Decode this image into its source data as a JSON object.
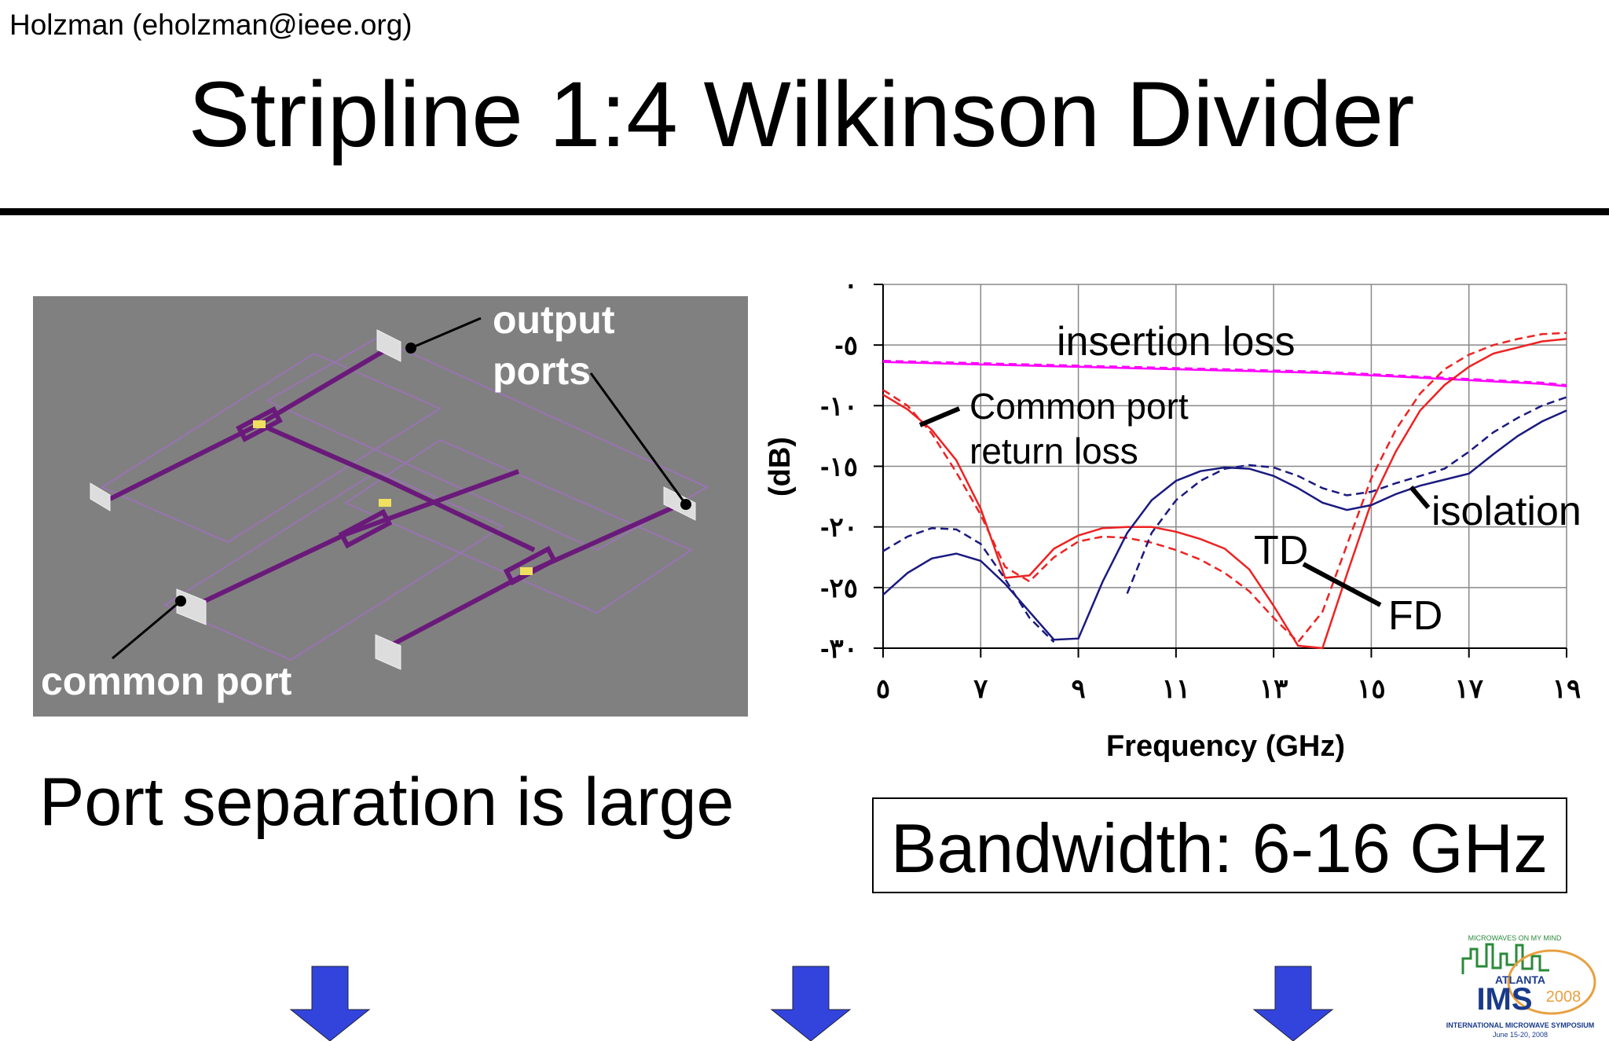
{
  "header": {
    "author": "Holzman  (eholzman@ieee.org)",
    "title": "Stripline 1:4 Wilkinson Divider"
  },
  "figure": {
    "labels": [
      "output",
      "ports",
      "common port"
    ]
  },
  "body": {
    "left_text": "Port separation is large",
    "box_text": "Bandwidth: 6-16 GHz"
  },
  "logo": {
    "tagline": "MICROWAVES ON MY MIND",
    "city": "ATLANTA",
    "name": "IMS",
    "year": "2008",
    "full_name": "INTERNATIONAL MICROWAVE SYMPOSIUM",
    "dates": "June 15-20, 2008"
  },
  "chart_data": {
    "type": "line",
    "x_label": "Frequency (GHz)",
    "y_label": "(dB)",
    "xlim": [
      5,
      19
    ],
    "ylim": [
      -30,
      0
    ],
    "grid": true,
    "xticks": [
      {
        "value": 5,
        "label": "٥"
      },
      {
        "value": 7,
        "label": "٧"
      },
      {
        "value": 9,
        "label": "٩"
      },
      {
        "value": 11,
        "label": "١١"
      },
      {
        "value": 13,
        "label": "١٣"
      },
      {
        "value": 15,
        "label": "١٥"
      },
      {
        "value": 17,
        "label": "١٧"
      },
      {
        "value": 19,
        "label": "١٩"
      }
    ],
    "yticks": [
      {
        "value": 0,
        "label": "٠"
      },
      {
        "value": -5,
        "label": "-٥"
      },
      {
        "value": -10,
        "label": "-١٠"
      },
      {
        "value": -15,
        "label": "-١٥"
      },
      {
        "value": -20,
        "label": "-٢٠"
      },
      {
        "value": -25,
        "label": "-٢٥"
      },
      {
        "value": -30,
        "label": "-٣٠"
      }
    ],
    "annotations": [
      "insertion loss",
      "Common port",
      "return loss",
      "isolation",
      "TD",
      "FD"
    ],
    "x": [
      5,
      5.5,
      6,
      6.5,
      7,
      7.5,
      8,
      8.5,
      9,
      9.5,
      10,
      10.5,
      11,
      11.5,
      12,
      12.5,
      13,
      13.5,
      14,
      14.5,
      15,
      15.5,
      16,
      16.5,
      17,
      17.5,
      18,
      18.5,
      19
    ],
    "series": [
      {
        "color": "#ff00ff",
        "dashed": false,
        "values": [
          -6.4,
          -6.45,
          -6.5,
          -6.55,
          -6.6,
          -6.65,
          -6.7,
          -6.75,
          -6.8,
          -6.85,
          -6.9,
          -6.95,
          -7.0,
          -7.05,
          -7.1,
          -7.15,
          -7.2,
          -7.25,
          -7.3,
          -7.4,
          -7.5,
          -7.6,
          -7.7,
          -7.8,
          -7.9,
          -8.0,
          -8.1,
          -8.2,
          -8.4
        ]
      },
      {
        "color": "#ff00ff",
        "dashed": true,
        "values": [
          -6.3,
          -6.35,
          -6.4,
          -6.45,
          -6.5,
          -6.55,
          -6.6,
          -6.65,
          -6.7,
          -6.75,
          -6.8,
          -6.85,
          -6.9,
          -6.95,
          -7.0,
          -7.05,
          -7.1,
          -7.15,
          -7.2,
          -7.3,
          -7.4,
          -7.5,
          -7.6,
          -7.7,
          -7.8,
          -7.9,
          -8.0,
          -8.1,
          -8.3
        ]
      },
      {
        "color": "#ee2222",
        "dashed": false,
        "values": [
          -9.1,
          -10.3,
          -12,
          -14.5,
          -18.5,
          -24.2,
          -24,
          -21.8,
          -20.7,
          -20.1,
          -20,
          -20,
          -20.4,
          -21,
          -21.8,
          -23.5,
          -26.5,
          -29.8,
          -30,
          -23.9,
          -18,
          -13.8,
          -10.4,
          -8.3,
          -6.8,
          -5.7,
          -5.2,
          -4.7,
          -4.5
        ]
      },
      {
        "color": "#ee2222",
        "dashed": true,
        "values": [
          -8.7,
          -10,
          -12.3,
          -15.5,
          -19,
          -23.3,
          -24.5,
          -22.5,
          -21.2,
          -20.8,
          -20.9,
          -21.3,
          -21.9,
          -22.7,
          -23.8,
          -25.3,
          -27.5,
          -29.5,
          -27,
          -21.5,
          -16,
          -12,
          -9,
          -7,
          -5.8,
          -5,
          -4.5,
          -4.1,
          -4
        ]
      },
      {
        "color": "#1a1a80",
        "dashed": false,
        "values": [
          -25.6,
          -23.8,
          -22.6,
          -22.2,
          -22.8,
          -24.7,
          -27,
          -29.3,
          -29.2,
          -24.5,
          -20.5,
          -17.8,
          -16.2,
          -15.4,
          -15.1,
          -15.2,
          -15.8,
          -16.8,
          -18,
          -18.6,
          -18.2,
          -17.3,
          -16.6,
          -16.1,
          -15.6,
          -14,
          -12.5,
          -11.3,
          -10.4
        ]
      },
      {
        "color": "#1a1a80",
        "dashed": true,
        "values": [
          -22,
          -20.8,
          -20.1,
          -20.2,
          -21.4,
          -24.3,
          -27.5,
          -29.5,
          null,
          null,
          -25.5,
          -20.5,
          -17.8,
          -16.2,
          -15.2,
          -14.9,
          -15.1,
          -15.8,
          -16.8,
          -17.4,
          -17.1,
          -16.4,
          -15.8,
          -15.2,
          -13.8,
          -12.2,
          -11,
          -10,
          -9.3
        ]
      }
    ]
  }
}
